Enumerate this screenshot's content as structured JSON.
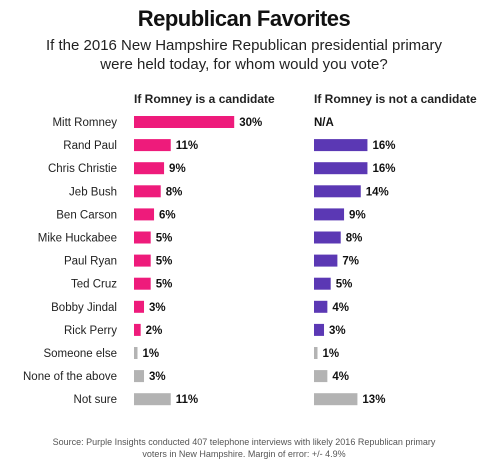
{
  "title": "Republican Favorites",
  "subtitle": "If the 2016 New Hampshire Republican presidential primary were held today, for whom would you vote?",
  "source": "Source: Purple Insights conducted 407 telephone interviews with likely 2016 Republican primary voters in New Hampshire. Margin of error: +/- 4.9%",
  "colors": {
    "with_romney": "#ee1b7b",
    "without_romney": "#5b38b4",
    "other": "#b3b3b3"
  },
  "chart_data": {
    "type": "bar",
    "orientation": "horizontal",
    "categories": [
      "Mitt Romney",
      "Rand Paul",
      "Chris Christie",
      "Jeb Bush",
      "Ben Carson",
      "Mike Huckabee",
      "Paul Ryan",
      "Ted Cruz",
      "Bobby Jindal",
      "Rick Perry",
      "Someone else",
      "None of the above",
      "Not sure"
    ],
    "series": [
      {
        "name": "If Romney is a candidate",
        "values": [
          30,
          11,
          9,
          8,
          6,
          5,
          5,
          5,
          3,
          2,
          1,
          3,
          11
        ],
        "labels": [
          "30%",
          "11%",
          "9%",
          "8%",
          "6%",
          "5%",
          "5%",
          "5%",
          "3%",
          "2%",
          "1%",
          "3%",
          "11%"
        ]
      },
      {
        "name": "If Romney is not a candidate",
        "values": [
          null,
          16,
          16,
          14,
          9,
          8,
          7,
          5,
          4,
          3,
          1,
          4,
          13
        ],
        "labels": [
          "N/A",
          "16%",
          "16%",
          "14%",
          "9%",
          "8%",
          "7%",
          "5%",
          "4%",
          "3%",
          "1%",
          "4%",
          "13%"
        ]
      }
    ],
    "gray_categories": [
      "Someone else",
      "None of the above",
      "Not sure"
    ],
    "unit": "%"
  }
}
